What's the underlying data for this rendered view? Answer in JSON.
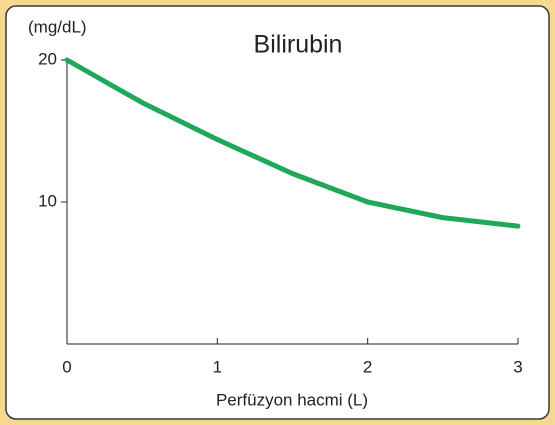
{
  "chart_data": {
    "type": "line",
    "title": "Bilirubin",
    "y_label": "(mg/dL)",
    "x_label": "Perfüzyon hacmi (L)",
    "x": [
      0,
      0.5,
      1,
      1.5,
      2,
      2.5,
      3
    ],
    "series": [
      {
        "name": "Bilirubin",
        "color": "#1fa85a",
        "values": [
          20,
          17.0,
          14.4,
          12.0,
          10.0,
          8.9,
          8.3
        ]
      }
    ],
    "xlim": [
      0,
      3
    ],
    "xticks": [
      0,
      1,
      2,
      3
    ],
    "ylim": [
      0,
      20
    ],
    "yticks": [
      10,
      20
    ]
  }
}
